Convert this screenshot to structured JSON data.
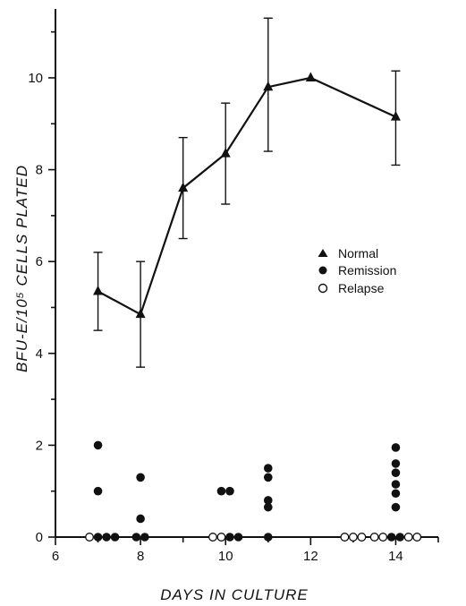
{
  "chart_data": {
    "type": "scatter",
    "title": "",
    "xlabel": "DAYS IN CULTURE",
    "ylabel": "BFU-E/10⁵ CELLS PLATED",
    "xlim": [
      6,
      15
    ],
    "ylim": [
      0,
      11.5
    ],
    "x_ticks": [
      6,
      8,
      10,
      12,
      14
    ],
    "y_ticks": [
      0,
      2,
      4,
      6,
      8,
      10
    ],
    "grid": false,
    "legend_position": "right-center",
    "series": [
      {
        "name": "Normal",
        "marker": "filled-triangle",
        "connected": true,
        "points": [
          {
            "x": 7,
            "y": 5.35,
            "err_low": 4.5,
            "err_high": 6.2
          },
          {
            "x": 8,
            "y": 4.85,
            "err_low": 3.7,
            "err_high": 6.0
          },
          {
            "x": 9,
            "y": 7.6,
            "err_low": 6.5,
            "err_high": 8.7
          },
          {
            "x": 10,
            "y": 8.35,
            "err_low": 7.25,
            "err_high": 9.45
          },
          {
            "x": 11,
            "y": 9.8,
            "err_low": 8.4,
            "err_high": 11.3
          },
          {
            "x": 12,
            "y": 10.0
          },
          {
            "x": 14,
            "y": 9.15,
            "err_low": 8.1,
            "err_high": 10.15
          }
        ]
      },
      {
        "name": "Remission",
        "marker": "filled-circle",
        "connected": false,
        "points": [
          {
            "x": 7,
            "y": 2.0
          },
          {
            "x": 7,
            "y": 1.0
          },
          {
            "x": 7,
            "y": 0
          },
          {
            "x": 7.2,
            "y": 0
          },
          {
            "x": 7.4,
            "y": 0
          },
          {
            "x": 8,
            "y": 1.3
          },
          {
            "x": 8,
            "y": 0.4
          },
          {
            "x": 7.9,
            "y": 0
          },
          {
            "x": 8.1,
            "y": 0
          },
          {
            "x": 9.9,
            "y": 1.0
          },
          {
            "x": 10.1,
            "y": 1.0
          },
          {
            "x": 10.1,
            "y": 0
          },
          {
            "x": 10.3,
            "y": 0
          },
          {
            "x": 11,
            "y": 1.5
          },
          {
            "x": 11,
            "y": 1.3
          },
          {
            "x": 11,
            "y": 0.8
          },
          {
            "x": 11,
            "y": 0.65
          },
          {
            "x": 11,
            "y": 0
          },
          {
            "x": 14,
            "y": 1.95
          },
          {
            "x": 14,
            "y": 1.6
          },
          {
            "x": 14,
            "y": 1.4
          },
          {
            "x": 14,
            "y": 1.15
          },
          {
            "x": 14,
            "y": 0.95
          },
          {
            "x": 14,
            "y": 0.65
          },
          {
            "x": 13.9,
            "y": 0
          },
          {
            "x": 14.1,
            "y": 0
          }
        ]
      },
      {
        "name": "Relapse",
        "marker": "open-circle",
        "connected": false,
        "points": [
          {
            "x": 6.8,
            "y": 0
          },
          {
            "x": 9.7,
            "y": 0
          },
          {
            "x": 9.9,
            "y": 0
          },
          {
            "x": 12.8,
            "y": 0
          },
          {
            "x": 13.0,
            "y": 0
          },
          {
            "x": 13.2,
            "y": 0
          },
          {
            "x": 13.5,
            "y": 0
          },
          {
            "x": 13.7,
            "y": 0
          },
          {
            "x": 14.3,
            "y": 0
          },
          {
            "x": 14.5,
            "y": 0
          }
        ]
      }
    ]
  }
}
